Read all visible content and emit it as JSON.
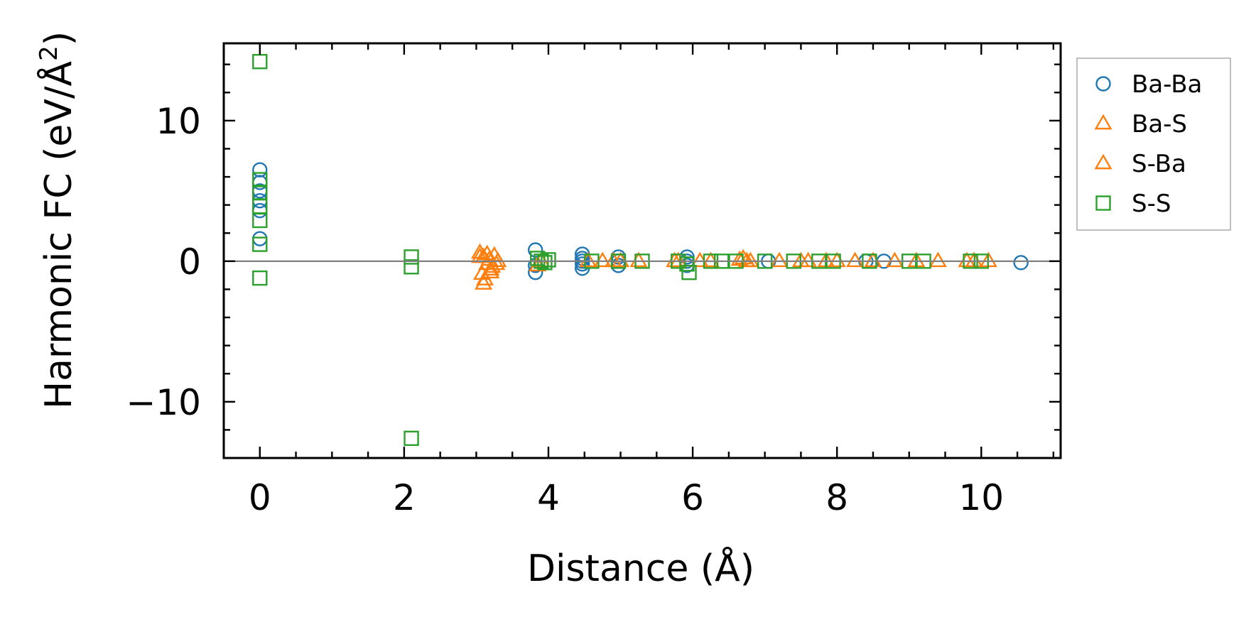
{
  "chart_data": {
    "type": "scatter",
    "xlabel": "Distance (Å)",
    "ylabel_main": "Harmonic FC (eV/Å",
    "ylabel_sup": "2",
    "ylabel_close": ")",
    "xlim": [
      -0.5,
      11.1
    ],
    "ylim": [
      -14,
      15.5
    ],
    "x_ticks": [
      0,
      2,
      4,
      6,
      8,
      10
    ],
    "x_tick_labels": [
      "0",
      "2",
      "4",
      "6",
      "8",
      "10"
    ],
    "y_ticks": [
      -10,
      0,
      10
    ],
    "y_tick_labels": [
      "−10",
      "0",
      "10"
    ],
    "zero_line": true,
    "legend_position": "outside-right",
    "series": [
      {
        "name": "Ba-Ba",
        "marker": "circle",
        "color": "#1f77b4",
        "points": [
          [
            0,
            6.5
          ],
          [
            0,
            5.6
          ],
          [
            0,
            5.0
          ],
          [
            0,
            4.3
          ],
          [
            0,
            3.6
          ],
          [
            0,
            1.6
          ],
          [
            3.82,
            0.8
          ],
          [
            3.82,
            -0.8
          ],
          [
            3.82,
            -0.3
          ],
          [
            4.47,
            0.5
          ],
          [
            4.47,
            0.2
          ],
          [
            4.47,
            -0.2
          ],
          [
            4.47,
            -0.5
          ],
          [
            4.47,
            0.0
          ],
          [
            4.97,
            0.3
          ],
          [
            4.97,
            0.0
          ],
          [
            4.97,
            -0.3
          ],
          [
            5.92,
            0.3
          ],
          [
            5.92,
            0.0
          ],
          [
            5.92,
            -0.3
          ],
          [
            7.05,
            0.0
          ],
          [
            8.4,
            0.0
          ],
          [
            8.65,
            0.0
          ],
          [
            10.55,
            -0.1
          ]
        ]
      },
      {
        "name": "Ba-S",
        "marker": "triangle",
        "color": "#ff7f0e",
        "points": [
          [
            3.05,
            0.6
          ],
          [
            3.1,
            0.3
          ],
          [
            3.15,
            -0.2
          ],
          [
            3.2,
            -0.6
          ],
          [
            3.25,
            0.4
          ],
          [
            3.08,
            -0.9
          ],
          [
            3.12,
            -1.3
          ],
          [
            3.18,
            0.1
          ],
          [
            3.22,
            -0.4
          ],
          [
            3.3,
            0.0
          ],
          [
            3.85,
            -0.3
          ],
          [
            4.75,
            0.0
          ],
          [
            4.9,
            0.0
          ],
          [
            5.25,
            0.0
          ],
          [
            5.8,
            0.0
          ],
          [
            6.1,
            0.0
          ],
          [
            6.7,
            0.2
          ],
          [
            6.75,
            0.0
          ],
          [
            7.2,
            0.0
          ],
          [
            7.6,
            0.0
          ],
          [
            7.85,
            0.0
          ],
          [
            8.25,
            0.0
          ],
          [
            8.8,
            0.0
          ],
          [
            9.4,
            0.0
          ],
          [
            9.8,
            0.0
          ],
          [
            10.1,
            0.0
          ]
        ]
      },
      {
        "name": "S-Ba",
        "marker": "triangle",
        "color": "#ff7f0e",
        "points": [
          [
            3.05,
            0.3
          ],
          [
            3.1,
            -1.6
          ],
          [
            3.15,
            0.5
          ],
          [
            3.2,
            -0.8
          ],
          [
            3.28,
            -0.2
          ],
          [
            3.9,
            0.0
          ],
          [
            4.55,
            0.0
          ],
          [
            5.0,
            0.0
          ],
          [
            5.75,
            0.0
          ],
          [
            6.25,
            0.0
          ],
          [
            6.65,
            0.1
          ],
          [
            6.8,
            0.0
          ],
          [
            7.5,
            0.0
          ],
          [
            8.0,
            0.0
          ],
          [
            8.5,
            0.0
          ],
          [
            9.1,
            0.0
          ],
          [
            9.9,
            0.0
          ]
        ]
      },
      {
        "name": "S-S",
        "marker": "square",
        "color": "#2ca02c",
        "points": [
          [
            0,
            14.2
          ],
          [
            0,
            5.8
          ],
          [
            0,
            4.9
          ],
          [
            0,
            3.9
          ],
          [
            0,
            2.9
          ],
          [
            0,
            1.2
          ],
          [
            0,
            -1.2
          ],
          [
            2.1,
            0.3
          ],
          [
            2.1,
            -0.4
          ],
          [
            2.1,
            -12.6
          ],
          [
            3.85,
            0.2
          ],
          [
            3.9,
            0.0
          ],
          [
            3.95,
            -0.1
          ],
          [
            4.0,
            0.1
          ],
          [
            4.6,
            0.0
          ],
          [
            4.97,
            0.0
          ],
          [
            5.3,
            0.0
          ],
          [
            5.8,
            0.0
          ],
          [
            5.92,
            -0.2
          ],
          [
            5.95,
            -0.8
          ],
          [
            6.25,
            0.0
          ],
          [
            6.4,
            0.0
          ],
          [
            6.6,
            0.0
          ],
          [
            7.0,
            0.0
          ],
          [
            7.4,
            0.0
          ],
          [
            7.75,
            0.0
          ],
          [
            7.95,
            0.0
          ],
          [
            8.45,
            0.0
          ],
          [
            9.0,
            0.0
          ],
          [
            9.2,
            0.0
          ],
          [
            9.85,
            0.0
          ],
          [
            10.0,
            0.0
          ]
        ]
      }
    ]
  }
}
